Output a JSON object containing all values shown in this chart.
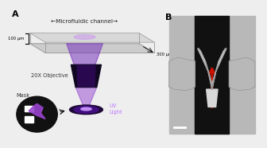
{
  "bg_color": "#eeeeee",
  "panel_a_label": "A",
  "panel_b_label": "B",
  "channel_label": "←Microfluidic channel→",
  "dim_100": "100 μm",
  "dim_300": "300 μm",
  "objective_label": "20X Objective",
  "mask_label": "Mask",
  "uv_label": "UV\nLight",
  "uv_color": "#bb77ff",
  "channel_fill": "#cccccc",
  "channel_top": "#bbbbbb",
  "objective_dark": "#100820",
  "beam_purple": "#5511aa",
  "mask_bg": "#111111",
  "arrow_red": "#cc1100",
  "img_bg": "#b8b8b8",
  "img_dark": "#111111",
  "valve_gray": "#d8d8d8"
}
